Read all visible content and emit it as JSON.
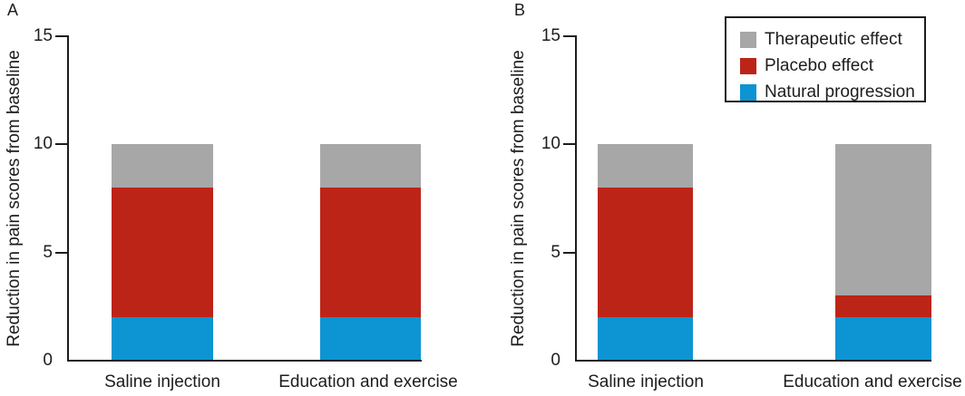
{
  "figure": {
    "panels": [
      {
        "label": "A"
      },
      {
        "label": "B"
      }
    ]
  },
  "colors": {
    "therapeutic_gray": "#a7a7a7",
    "placebo_red": "#bd2418",
    "natural_blue": "#0d94d2",
    "axis_black": "#1d1d1d",
    "background": "#ffffff"
  },
  "legend": {
    "position": "top-right",
    "items": [
      {
        "label": "Therapeutic effect",
        "color": "#a7a7a7"
      },
      {
        "label": "Placebo effect",
        "color": "#bd2418"
      },
      {
        "label": "Natural progression",
        "color": "#0d94d2"
      }
    ]
  },
  "chart_data": [
    {
      "type": "bar",
      "stacked": true,
      "panel": "A",
      "title": "",
      "categories": [
        "Saline injection",
        "Education and exercise"
      ],
      "series": [
        {
          "name": "Natural progression",
          "color": "#0d94d2",
          "values": [
            2,
            2
          ]
        },
        {
          "name": "Placebo effect",
          "color": "#bd2418",
          "values": [
            6,
            6
          ]
        },
        {
          "name": "Therapeutic effect",
          "color": "#a7a7a7",
          "values": [
            2,
            2
          ]
        }
      ],
      "totals": [
        10,
        10
      ],
      "xlabel": "",
      "ylabel": "Reduction in pain scores from baseline",
      "ylim": [
        0,
        15
      ],
      "yticks": [
        0,
        5,
        10,
        15
      ],
      "grid": false,
      "legend_position": "none"
    },
    {
      "type": "bar",
      "stacked": true,
      "panel": "B",
      "title": "",
      "categories": [
        "Saline injection",
        "Education and exercise"
      ],
      "series": [
        {
          "name": "Natural progression",
          "color": "#0d94d2",
          "values": [
            2,
            2
          ]
        },
        {
          "name": "Placebo effect",
          "color": "#bd2418",
          "values": [
            6,
            1
          ]
        },
        {
          "name": "Therapeutic effect",
          "color": "#a7a7a7",
          "values": [
            2,
            7
          ]
        }
      ],
      "totals": [
        10,
        10
      ],
      "xlabel": "",
      "ylabel": "Reduction in pain scores from baseline",
      "ylim": [
        0,
        15
      ],
      "yticks": [
        0,
        5,
        10,
        15
      ],
      "grid": false,
      "legend_position": "top-right"
    }
  ]
}
